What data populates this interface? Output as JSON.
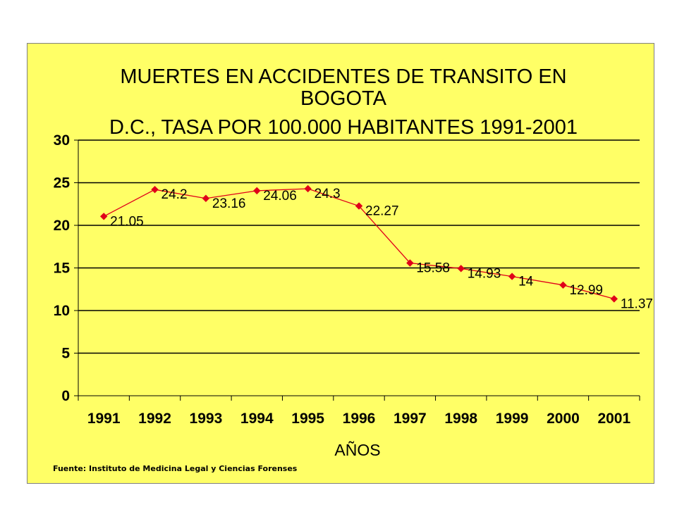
{
  "chart_data": {
    "type": "line",
    "title_lines": [
      "MUERTES EN ACCIDENTES DE TRANSITO EN",
      "BOGOTA",
      "D.C., TASA POR 100.000 HABITANTES 1991-2001"
    ],
    "xlabel": "AÑOS",
    "ylabel": "",
    "categories": [
      "1991",
      "1992",
      "1993",
      "1994",
      "1995",
      "1996",
      "1997",
      "1998",
      "1999",
      "2000",
      "2001"
    ],
    "series": [
      {
        "values": [
          21.05,
          24.2,
          23.16,
          24.06,
          24.3,
          22.27,
          15.58,
          14.93,
          14,
          12.99,
          11.37
        ],
        "labels": [
          "21.05",
          "24.2",
          "23.16",
          "24.06",
          "24.3",
          "22.27",
          "15.58",
          "14.93",
          "14",
          "12.99",
          "11.37"
        ],
        "color": "#e0001a"
      }
    ],
    "ylim": [
      0,
      30
    ],
    "yticks": [
      "0",
      "5",
      "10",
      "15",
      "20",
      "25",
      "30"
    ],
    "grid": true,
    "legend": "none",
    "background": "#ffff66",
    "source": "Fuente: Instituto de Medicina Legal y Ciencias Forenses"
  }
}
